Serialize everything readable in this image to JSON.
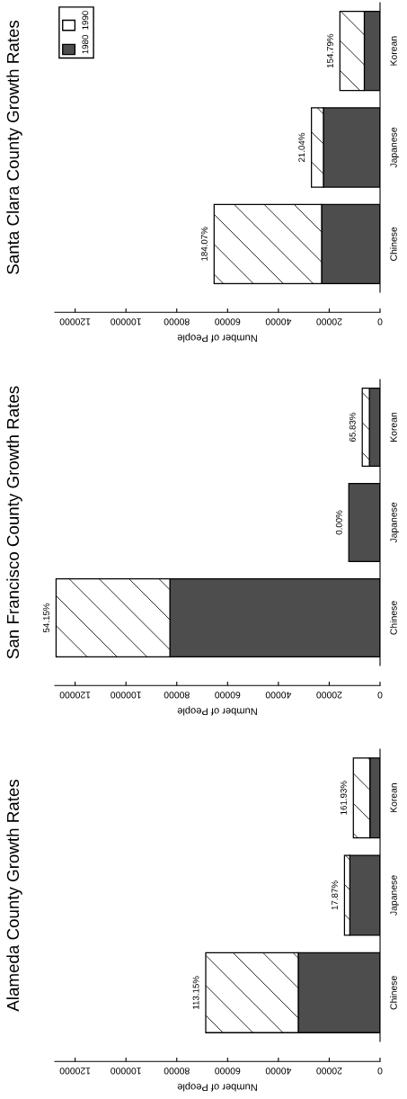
{
  "chart_data": [
    {
      "type": "bar",
      "title": "Santa Clara County Growth Rates",
      "orientation": "horizontal",
      "stacked": true,
      "xlabel": "Number of People",
      "categories": [
        "Korean",
        "Japanese",
        "Chinese"
      ],
      "series": [
        {
          "name": "1980",
          "color": "#4d4d4d",
          "values": [
            6200,
            22300,
            23000
          ]
        },
        {
          "name": "1990",
          "color": "#ffffff",
          "values": [
            9600,
            4700,
            42300
          ]
        }
      ],
      "annotations": [
        {
          "text": "154.79%",
          "x": 15800,
          "y": "Korean"
        },
        {
          "text": "21.04%",
          "x": 27000,
          "y": "Japanese"
        },
        {
          "text": "184.07%",
          "x": 65300,
          "y": "Chinese"
        }
      ],
      "xlim": [
        128000,
        0
      ],
      "xticks": [
        0,
        20000,
        40000,
        60000,
        80000,
        100000,
        120000
      ],
      "grid": false,
      "legend": "top left"
    },
    {
      "type": "bar",
      "title": "San Francisco County Growth Rates",
      "orientation": "horizontal",
      "stacked": true,
      "xlabel": "Number of People",
      "categories": [
        "Korean",
        "Japanese",
        "Chinese"
      ],
      "series": [
        {
          "color": "#4d4d4d",
          "values": [
            4200,
            12300,
            82700
          ]
        },
        {
          "color": "#ffffff",
          "values": [
            2800,
            0,
            44800
          ]
        }
      ],
      "annotations": [
        {
          "text": "65.83%",
          "x": 7000,
          "y": "Korean"
        },
        {
          "text": "0.00%",
          "x": 12300,
          "y": "Japanese"
        },
        {
          "text": "54.15%",
          "x": 127500,
          "y": "Chinese"
        }
      ],
      "xlim": [
        128000,
        0
      ],
      "xticks": [
        0,
        20000,
        40000,
        60000,
        80000,
        100000,
        120000
      ],
      "grid": false,
      "legend": false
    },
    {
      "type": "bar",
      "title": "Alameda County Growth Rates",
      "orientation": "horizontal",
      "stacked": true,
      "xlabel": "Number of People",
      "categories": [
        "Korean",
        "Japanese",
        "Chinese"
      ],
      "series": [
        {
          "color": "#4d4d4d",
          "values": [
            4000,
            11900,
            32200
          ]
        },
        {
          "color": "#ffffff",
          "values": [
            6500,
            2100,
            36400
          ]
        }
      ],
      "annotations": [
        {
          "text": "161.93%",
          "x": 10500,
          "y": "Korean"
        },
        {
          "text": "17.87%",
          "x": 14000,
          "y": "Japanese"
        },
        {
          "text": "113.15%",
          "x": 68600,
          "y": "Chinese"
        }
      ],
      "xlim": [
        128000,
        0
      ],
      "xticks": [
        0,
        20000,
        40000,
        60000,
        80000,
        100000,
        120000
      ],
      "grid": false,
      "legend": false
    }
  ]
}
